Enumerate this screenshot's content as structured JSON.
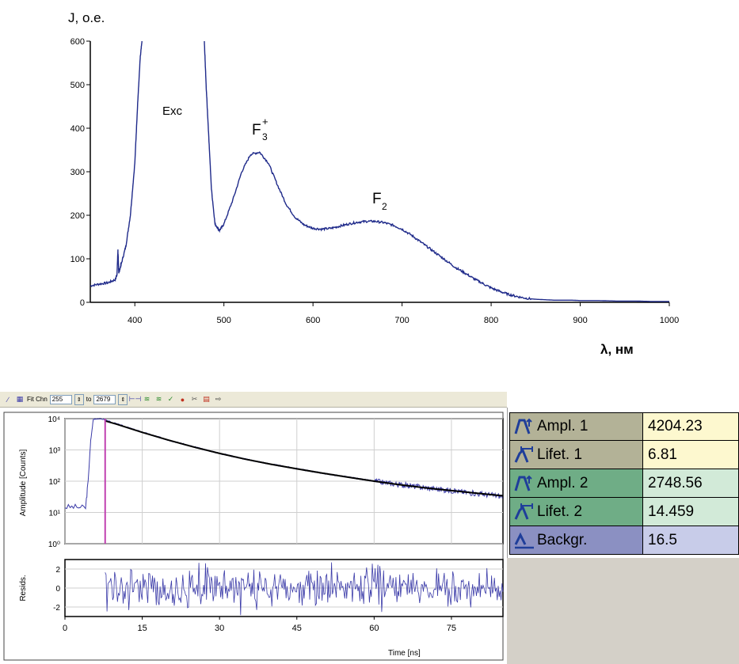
{
  "spectrum": {
    "y_label": "J, o.e.",
    "x_label": "λ, нм",
    "peak_labels": [
      {
        "text": "Exc",
        "x": 440,
        "y": 440
      },
      {
        "text": "F3+",
        "main": "F",
        "sub": "3",
        "sup": "+",
        "x": 540,
        "y": 410
      },
      {
        "text": "F2",
        "main": "F",
        "sub": "2",
        "x": 672,
        "y": 228
      }
    ]
  },
  "decay": {
    "toolbar": {
      "fit_label": "Fit Chn",
      "from_value": "255",
      "to_label": "to",
      "to_value": "2679"
    },
    "y_label": "Amplitude [Counts]",
    "resid_label": "Resids.",
    "x_label": "Time [ns]"
  },
  "params": [
    {
      "name": "Ampl. 1",
      "value": "4204.23",
      "icon": "amplitude-icon",
      "name_color": "#b3b297",
      "value_color": "#fdf8cf"
    },
    {
      "name": "Lifet. 1",
      "value": "6.81",
      "icon": "lifetime-icon",
      "name_color": "#b3b297",
      "value_color": "#fdf8cf"
    },
    {
      "name": "Ampl. 2",
      "value": "2748.56",
      "icon": "amplitude-icon",
      "name_color": "#6fad86",
      "value_color": "#d2ead8"
    },
    {
      "name": "Lifet. 2",
      "value": "14.459",
      "icon": "lifetime-icon",
      "name_color": "#6fad86",
      "value_color": "#d2ead8"
    },
    {
      "name": "Backgr.",
      "value": "16.5",
      "icon": "background-icon",
      "name_color": "#8b90c2",
      "value_color": "#c8cce9"
    }
  ],
  "chart_data": [
    {
      "type": "line",
      "xlabel": "λ, нм",
      "ylabel": "J, o.e.",
      "xlim": [
        350,
        1000
      ],
      "ylim": [
        0,
        600
      ],
      "x_ticks": [
        400,
        500,
        600,
        700,
        800,
        900,
        1000
      ],
      "y_ticks": [
        0,
        100,
        200,
        300,
        400,
        500,
        600
      ],
      "grid": false,
      "color": "#1f2a8a",
      "series": [
        {
          "segments": [
            {
              "x": [
                350,
                360,
                370,
                378,
                380,
                381,
                382,
                385,
                390,
                395,
                400,
                403,
                406,
                408
              ],
              "y": [
                38,
                42,
                45,
                52,
                65,
                120,
                68,
                90,
                130,
                200,
                320,
                450,
                560,
                600
              ]
            },
            {
              "x": [
                478,
                480,
                483,
                486,
                490,
                495,
                500,
                510,
                520,
                530,
                540,
                550,
                560,
                570,
                580,
                590,
                600,
                610,
                620,
                630,
                640,
                650,
                660,
                670,
                680,
                690,
                700,
                710,
                720,
                730,
                740,
                750,
                760,
                770,
                780,
                790,
                800,
                810,
                820,
                830,
                840,
                850,
                860,
                870,
                880,
                890,
                900,
                920,
                940,
                960,
                980,
                1000
              ],
              "y": [
                600,
                500,
                380,
                260,
                180,
                165,
                180,
                235,
                300,
                340,
                345,
                320,
                270,
                225,
                195,
                178,
                170,
                168,
                170,
                175,
                180,
                184,
                186,
                186,
                183,
                177,
                168,
                155,
                140,
                125,
                110,
                95,
                80,
                68,
                55,
                44,
                33,
                25,
                18,
                13,
                9,
                7,
                6,
                5,
                5,
                5,
                4,
                4,
                3,
                3,
                2,
                2
              ]
            }
          ]
        }
      ],
      "annotations": [
        "Exc",
        "F3+",
        "F2"
      ]
    },
    {
      "type": "line",
      "xlabel": "Time [ns]",
      "ylabel": "Amplitude [Counts]",
      "yscale": "log",
      "xlim": [
        0,
        85
      ],
      "ylim": [
        1,
        10000
      ],
      "x_ticks": [
        0,
        15,
        30,
        45,
        60,
        75
      ],
      "y_ticks": [
        1,
        10,
        100,
        1000,
        10000
      ],
      "y_tick_labels": [
        "10⁰",
        "10¹",
        "10²",
        "10³",
        "10⁴"
      ],
      "marker_line_x": 7.8,
      "series": [
        {
          "name": "data",
          "color": "#3a3aa8",
          "x": [
            0,
            2,
            4,
            4.5,
            5,
            5.5,
            6,
            7,
            8,
            10,
            15,
            20,
            25,
            30,
            35,
            40,
            45,
            50,
            55,
            60,
            65,
            70,
            75,
            80,
            85
          ],
          "y": [
            15,
            15,
            14,
            100,
            2000,
            9500,
            10000,
            10000,
            9000,
            6800,
            3700,
            2100,
            1250,
            780,
            510,
            350,
            250,
            180,
            135,
            100,
            78,
            62,
            50,
            40,
            33
          ]
        },
        {
          "name": "fit",
          "color": "#000000",
          "x": [
            7.8,
            10,
            15,
            20,
            25,
            30,
            35,
            40,
            45,
            50,
            55,
            60,
            65,
            70,
            75,
            80,
            85
          ],
          "y": [
            8500,
            6700,
            3650,
            2080,
            1240,
            775,
            505,
            348,
            248,
            180,
            134,
            100,
            77,
            61,
            50,
            41,
            34
          ]
        }
      ]
    },
    {
      "type": "line",
      "xlabel": "Time [ns]",
      "ylabel": "Resids.",
      "xlim": [
        0,
        85
      ],
      "ylim": [
        -3,
        3
      ],
      "x_ticks": [
        0,
        15,
        30,
        45,
        60,
        75
      ],
      "y_ticks": [
        -2,
        0,
        2
      ],
      "series": [
        {
          "name": "residuals",
          "color": "#3a3aa8",
          "x_range": [
            7.8,
            85
          ],
          "amplitude": 2.2
        }
      ]
    }
  ]
}
